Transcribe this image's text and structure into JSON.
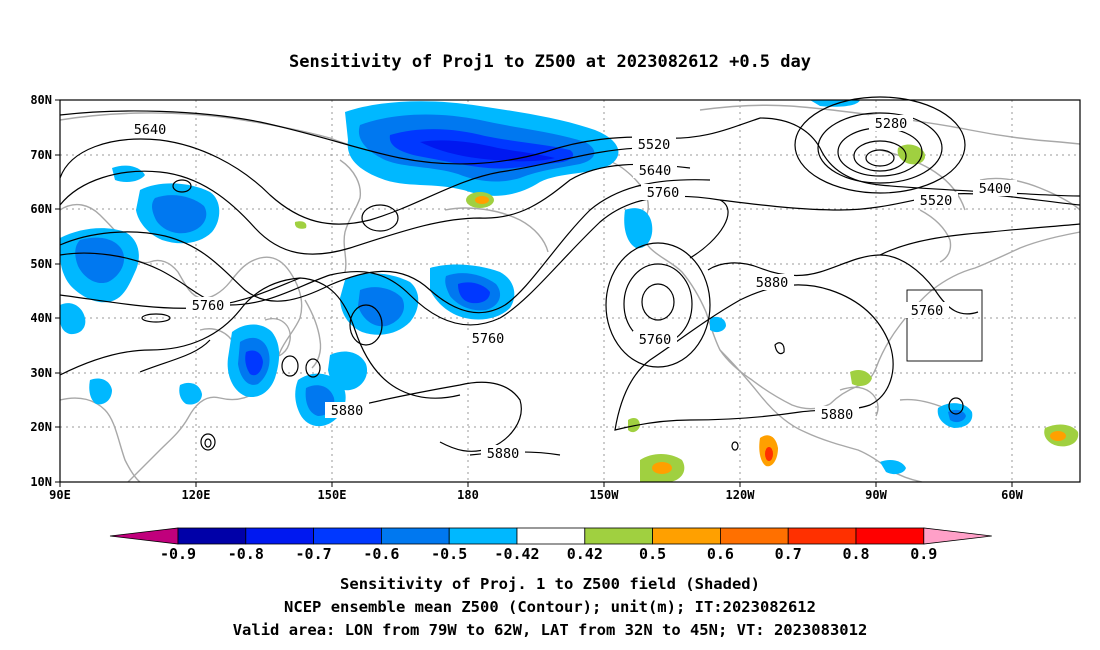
{
  "title": "Sensitivity of Proj1 to Z500 at 2023082612 +0.5 day",
  "map": {
    "lon_range_label": [
      "90E",
      "60W"
    ],
    "lat_range_label": [
      "10N",
      "80N"
    ],
    "lon_ticks": [
      "90E",
      "120E",
      "150E",
      "180",
      "150W",
      "120W",
      "90W",
      "60W"
    ],
    "lat_ticks": [
      "80N",
      "70N",
      "60N",
      "50N",
      "40N",
      "30N",
      "20N",
      "10N"
    ],
    "gridlines": true,
    "valid_area_box": {
      "lon": [
        "79W",
        "62W"
      ],
      "lat": [
        "32N",
        "45N"
      ]
    }
  },
  "contour_labels": [
    {
      "id": "c5640-west",
      "text": "5640"
    },
    {
      "id": "c5520",
      "text": "5520"
    },
    {
      "id": "c5640-pac",
      "text": "5640"
    },
    {
      "id": "c5760-pac",
      "text": "5760"
    },
    {
      "id": "c5280",
      "text": "5280"
    },
    {
      "id": "c5400",
      "text": "5400"
    },
    {
      "id": "c5520-east",
      "text": "5520"
    },
    {
      "id": "c5760-west",
      "text": "5760"
    },
    {
      "id": "c5760-dateline",
      "text": "5760"
    },
    {
      "id": "c5760-low",
      "text": "5760"
    },
    {
      "id": "c5880-us",
      "text": "5880"
    },
    {
      "id": "c5760-east",
      "text": "5760"
    },
    {
      "id": "c5880-wpac",
      "text": "5880"
    },
    {
      "id": "c5880-sub",
      "text": "5880"
    },
    {
      "id": "c5880-gulf",
      "text": "5880"
    }
  ],
  "colorbar": {
    "labels": [
      "-0.9",
      "-0.8",
      "-0.7",
      "-0.6",
      "-0.5",
      "-0.42",
      "0.42",
      "0.5",
      "0.6",
      "0.7",
      "0.8",
      "0.9"
    ],
    "colors": [
      "#c0007c",
      "#0000a8",
      "#0018f0",
      "#0038ff",
      "#0078f0",
      "#00b8ff",
      "#ffffff",
      "#a0d040",
      "#ffa000",
      "#ff7000",
      "#ff3000",
      "#ff0000",
      "#ffa0c8"
    ]
  },
  "caption": {
    "line1": "Sensitivity of Proj. 1 to Z500 field (Shaded)",
    "line2": "NCEP ensemble mean Z500 (Contour); unit(m); IT:2023082612",
    "line3": "Valid area: LON from 79W to 62W, LAT from 32N to 45N; VT: 2023083012"
  }
}
